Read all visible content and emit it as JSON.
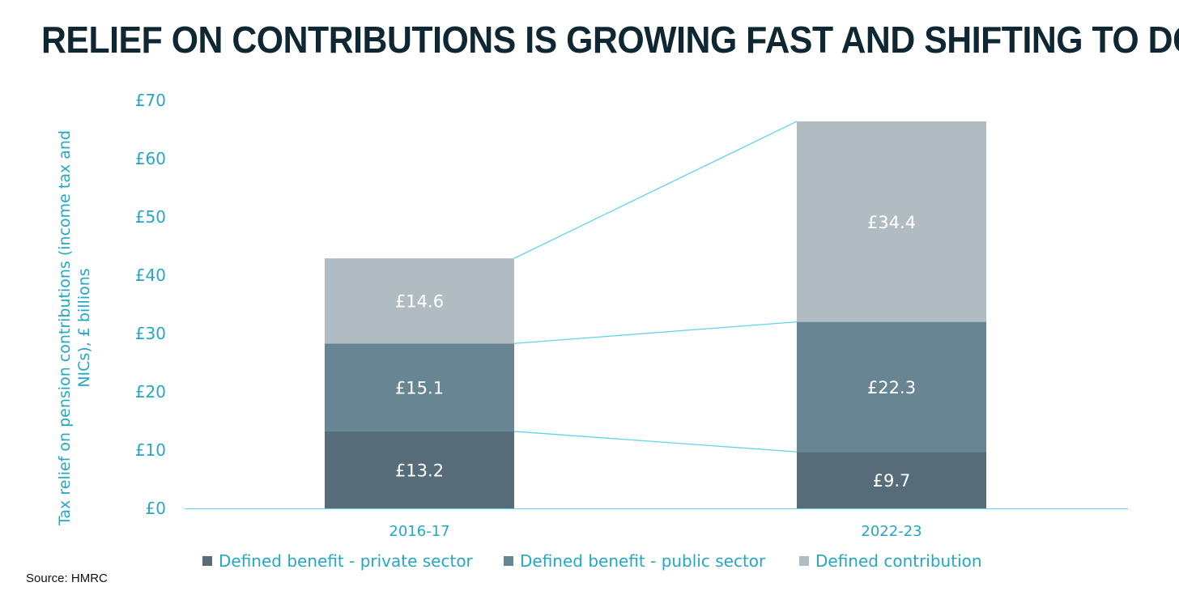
{
  "chart_data": {
    "type": "bar",
    "stacked": true,
    "title": "RELIEF ON CONTRIBUTIONS IS GROWING FAST AND SHIFTING TO DC",
    "ylabel": "Tax relief on pension contributions (income tax and NICs), £ billions",
    "xlabel": "",
    "categories": [
      "2016-17",
      "2022-23"
    ],
    "series": [
      {
        "name": "Defined benefit - private sector",
        "values": [
          13.2,
          9.7
        ],
        "labels": [
          "£13.2",
          "£9.7"
        ],
        "color": "#566d79"
      },
      {
        "name": "Defined benefit - public sector",
        "values": [
          15.1,
          22.3
        ],
        "labels": [
          "£15.1",
          "£22.3"
        ],
        "color": "#678593"
      },
      {
        "name": "Defined contribution",
        "values": [
          14.6,
          34.4
        ],
        "labels": [
          "£14.6",
          "£34.4"
        ],
        "color": "#b1bcc2"
      }
    ],
    "ylim": [
      0,
      70
    ],
    "yticks": [
      0,
      10,
      20,
      30,
      40,
      50,
      60,
      70
    ],
    "ytick_labels": [
      "£0",
      "£10",
      "£20",
      "£30",
      "£40",
      "£50",
      "£60",
      "£70"
    ],
    "connector_lines": true,
    "grid": false,
    "legend_position": "bottom",
    "source": "Source: HMRC",
    "colors": {
      "axis_text": "#23a8c4",
      "connector": "#5fd4ea",
      "title": "#0f2733"
    }
  }
}
